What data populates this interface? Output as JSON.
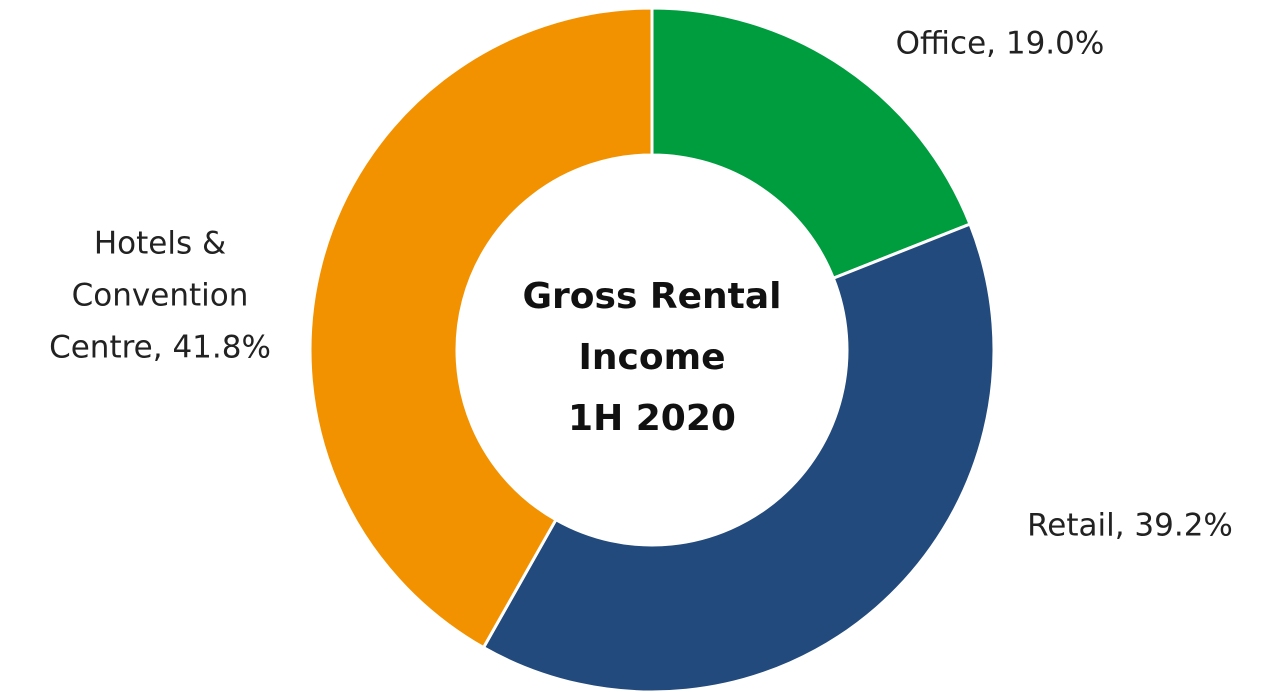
{
  "chart_data": {
    "type": "donut",
    "title": [
      "Gross Rental",
      "Income",
      "1H 2020"
    ],
    "values": [
      19.0,
      39.2,
      41.8
    ],
    "value_labels": [
      [
        "Office, 19.0%"
      ],
      [
        "Retail, 39.2%"
      ],
      [
        "Hotels &",
        "Convention",
        "Centre, 41.8%"
      ]
    ],
    "colors": [
      "#009d3f",
      "#224a7c",
      "#f39200"
    ]
  }
}
